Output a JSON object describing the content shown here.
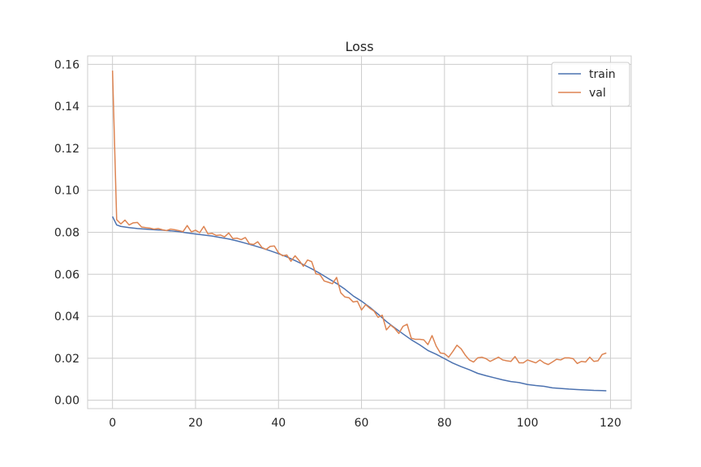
{
  "chart_data": {
    "type": "line",
    "title": "Loss",
    "xlabel": "",
    "ylabel": "",
    "xlim": [
      -6,
      125
    ],
    "ylim": [
      -0.004,
      0.164
    ],
    "xticks": [
      0,
      20,
      40,
      60,
      80,
      100,
      120
    ],
    "yticks": [
      0.0,
      0.02,
      0.04,
      0.06,
      0.08,
      0.1,
      0.12,
      0.14,
      0.16
    ],
    "ytick_labels": [
      "0.00",
      "0.02",
      "0.04",
      "0.06",
      "0.08",
      "0.10",
      "0.12",
      "0.14",
      "0.16"
    ],
    "xtick_labels": [
      "0",
      "20",
      "40",
      "60",
      "80",
      "100",
      "120"
    ],
    "grid": true,
    "legend_position": "top-right",
    "series": [
      {
        "name": "train",
        "color": "#4c72b0",
        "x": [
          0,
          1,
          2,
          4,
          6,
          8,
          10,
          12,
          14,
          16,
          18,
          20,
          22,
          24,
          26,
          28,
          30,
          32,
          34,
          36,
          38,
          40,
          42,
          44,
          46,
          48,
          50,
          52,
          54,
          56,
          58,
          60,
          62,
          64,
          66,
          68,
          70,
          72,
          74,
          76,
          78,
          80,
          82,
          84,
          86,
          88,
          90,
          92,
          94,
          96,
          98,
          100,
          102,
          104,
          106,
          108,
          110,
          112,
          114,
          116,
          118,
          119
        ],
        "y": [
          0.0875,
          0.0835,
          0.0828,
          0.0822,
          0.0818,
          0.0815,
          0.0812,
          0.081,
          0.0807,
          0.0803,
          0.0797,
          0.0792,
          0.0787,
          0.0782,
          0.0775,
          0.0768,
          0.0759,
          0.0748,
          0.0737,
          0.0725,
          0.0712,
          0.0698,
          0.0683,
          0.0665,
          0.0646,
          0.0626,
          0.0604,
          0.058,
          0.0556,
          0.0529,
          0.0497,
          0.0472,
          0.0443,
          0.041,
          0.0375,
          0.0345,
          0.0316,
          0.0288,
          0.0264,
          0.0237,
          0.0219,
          0.0198,
          0.0177,
          0.016,
          0.0145,
          0.0128,
          0.0117,
          0.0107,
          0.0097,
          0.0089,
          0.0084,
          0.0075,
          0.007,
          0.0066,
          0.0059,
          0.0056,
          0.0053,
          0.0051,
          0.0049,
          0.0047,
          0.0046,
          0.0045
        ]
      },
      {
        "name": "val",
        "color": "#dd8452",
        "x": [
          0,
          1,
          2,
          3,
          4,
          5,
          6,
          7,
          8,
          9,
          10,
          11,
          12,
          13,
          14,
          15,
          16,
          17,
          18,
          19,
          20,
          21,
          22,
          23,
          24,
          25,
          26,
          27,
          28,
          29,
          30,
          31,
          32,
          33,
          34,
          35,
          36,
          37,
          38,
          39,
          40,
          41,
          42,
          43,
          44,
          45,
          46,
          47,
          48,
          49,
          50,
          51,
          52,
          53,
          54,
          55,
          56,
          57,
          58,
          59,
          60,
          61,
          62,
          63,
          64,
          65,
          66,
          67,
          68,
          69,
          70,
          71,
          72,
          73,
          74,
          75,
          76,
          77,
          78,
          79,
          80,
          81,
          82,
          83,
          84,
          85,
          86,
          87,
          88,
          89,
          90,
          91,
          92,
          93,
          94,
          95,
          96,
          97,
          98,
          99,
          100,
          101,
          102,
          103,
          104,
          105,
          106,
          107,
          108,
          109,
          110,
          111,
          112,
          113,
          114,
          115,
          116,
          117,
          118,
          119
        ],
        "y": [
          0.157,
          0.086,
          0.084,
          0.0858,
          0.0835,
          0.0845,
          0.0847,
          0.0825,
          0.0822,
          0.082,
          0.0815,
          0.0818,
          0.0812,
          0.0808,
          0.0815,
          0.0812,
          0.0808,
          0.0803,
          0.0832,
          0.0802,
          0.081,
          0.0798,
          0.0828,
          0.0792,
          0.0795,
          0.0785,
          0.0787,
          0.0778,
          0.0797,
          0.077,
          0.0772,
          0.0765,
          0.0775,
          0.0745,
          0.0742,
          0.0755,
          0.0728,
          0.0718,
          0.0733,
          0.0735,
          0.0702,
          0.0688,
          0.0692,
          0.0662,
          0.0688,
          0.0665,
          0.0638,
          0.0668,
          0.066,
          0.0602,
          0.0598,
          0.0568,
          0.0562,
          0.0555,
          0.0585,
          0.0512,
          0.0492,
          0.0488,
          0.0468,
          0.0472,
          0.043,
          0.0455,
          0.0438,
          0.0425,
          0.0395,
          0.0405,
          0.0335,
          0.0358,
          0.0342,
          0.0318,
          0.0352,
          0.0362,
          0.0295,
          0.029,
          0.029,
          0.0288,
          0.0265,
          0.0308,
          0.0258,
          0.0225,
          0.0222,
          0.0205,
          0.0232,
          0.0262,
          0.0245,
          0.0215,
          0.0192,
          0.0182,
          0.0202,
          0.0205,
          0.0198,
          0.0185,
          0.0195,
          0.0205,
          0.0192,
          0.0188,
          0.0185,
          0.0208,
          0.0178,
          0.0178,
          0.0192,
          0.0185,
          0.0178,
          0.0192,
          0.0178,
          0.017,
          0.0182,
          0.0195,
          0.0192,
          0.0202,
          0.0202,
          0.0198,
          0.0175,
          0.0185,
          0.0182,
          0.0205,
          0.0185,
          0.0188,
          0.0218,
          0.0225
        ]
      }
    ]
  }
}
